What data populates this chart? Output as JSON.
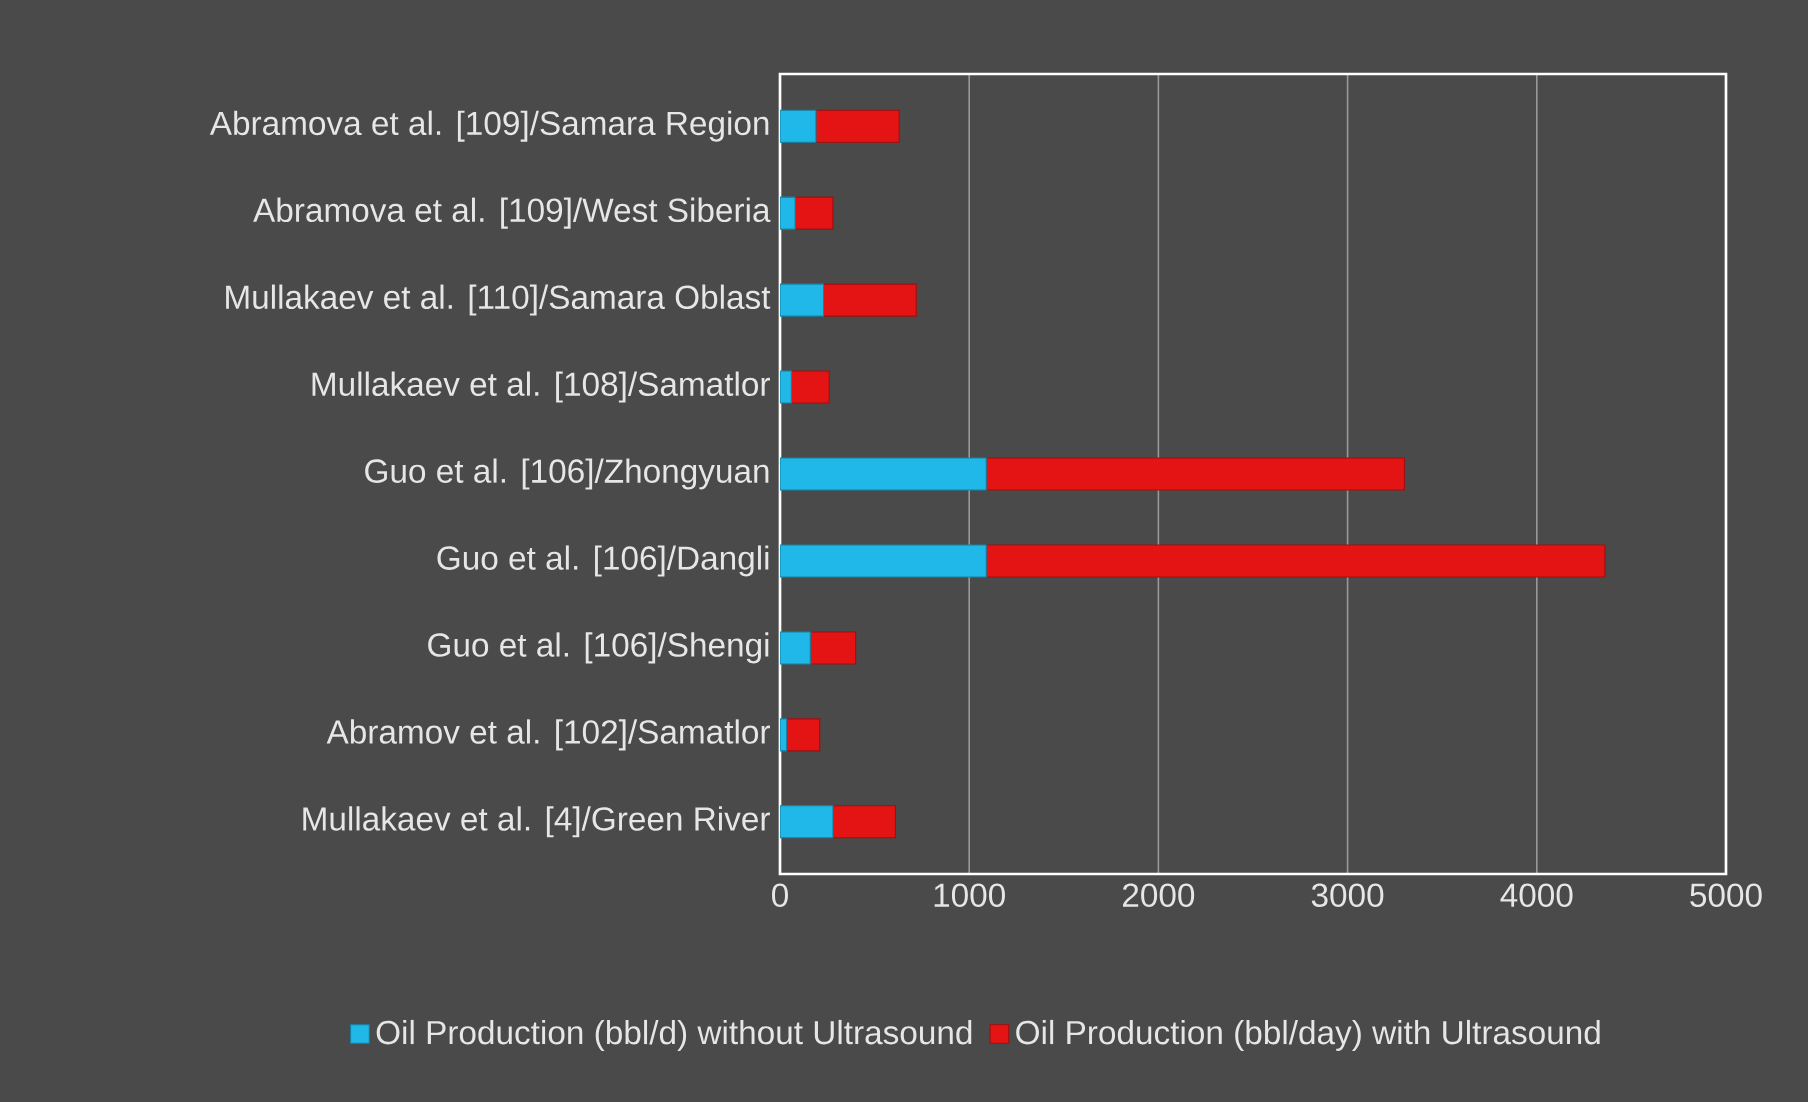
{
  "chart_data": {
    "type": "bar",
    "orientation": "horizontal",
    "stacked": true,
    "categories": [
      "Abramova et al. [109]/Samara Region",
      "Abramova et al. [109]/West Siberia",
      "Mullakaev et al. [110]/Samara Oblast",
      "Mullakaev et al. [108]/Samatlor",
      "Guo et al. [106]/Zhongyuan",
      "Guo et al. [106]/Dangli",
      "Guo et al. [106]/Shengi",
      "Abramov et al. [102]/Samatlor",
      "Mullakaev et al. [4]/Green River"
    ],
    "series": [
      {
        "name": "Oil Production (bbl/d) without Ultrasound",
        "color": "#1fb8e8",
        "values": [
          190,
          80,
          230,
          60,
          1090,
          1090,
          160,
          35,
          280
        ]
      },
      {
        "name": "Oil Production (bbl/day) with Ultrasound",
        "color": "#e41414",
        "values": [
          440,
          200,
          490,
          200,
          2210,
          3270,
          240,
          175,
          330
        ]
      }
    ],
    "xlim": [
      0,
      5000
    ],
    "xticks": [
      0,
      1000,
      2000,
      3000,
      4000,
      5000
    ],
    "grid": "x",
    "legend": "bottom"
  }
}
